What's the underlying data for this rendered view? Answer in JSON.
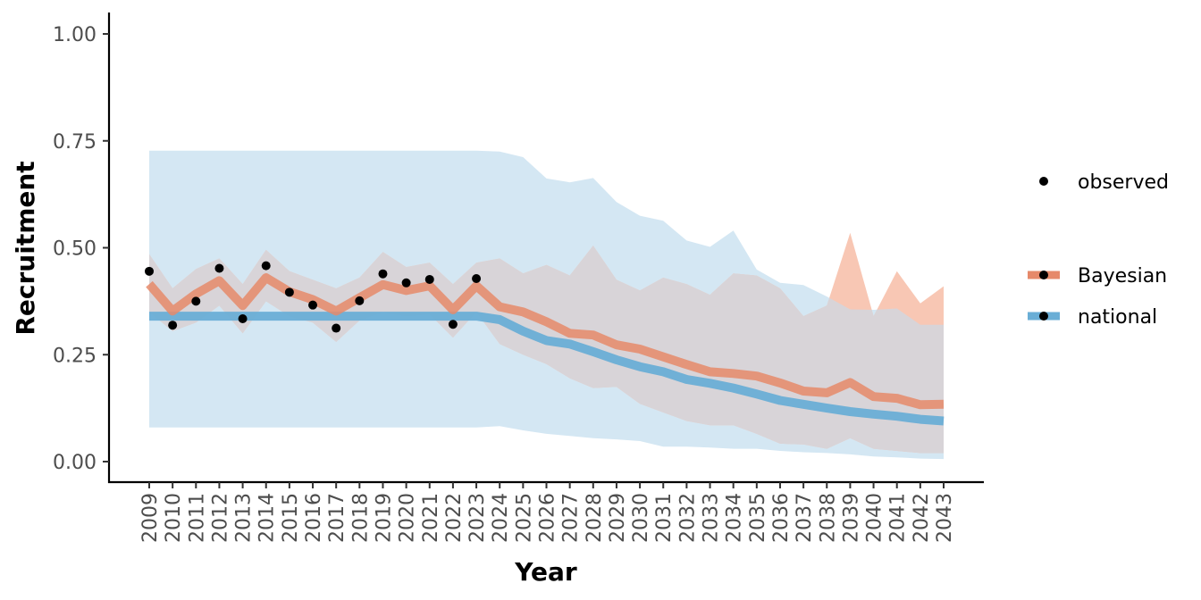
{
  "chart_data": {
    "type": "line",
    "xlabel": "Year",
    "ylabel": "Recruitment",
    "ylim": [
      0,
      1
    ],
    "yticks": [
      0,
      0.25,
      0.5,
      0.75,
      1
    ],
    "ytick_labels": [
      "0.00",
      "0.25",
      "0.50",
      "0.75",
      "1.00"
    ],
    "grid": false,
    "legend_position": "right",
    "x": [
      2009,
      2010,
      2011,
      2012,
      2013,
      2014,
      2015,
      2016,
      2017,
      2018,
      2019,
      2020,
      2021,
      2022,
      2023,
      2024,
      2025,
      2026,
      2027,
      2028,
      2029,
      2030,
      2031,
      2032,
      2033,
      2034,
      2035,
      2036,
      2037,
      2038,
      2039,
      2040,
      2041,
      2042,
      2043
    ],
    "observed": {
      "name": "observed",
      "x": [
        2009,
        2010,
        2011,
        2012,
        2013,
        2014,
        2015,
        2016,
        2017,
        2018,
        2019,
        2020,
        2021,
        2022,
        2023
      ],
      "values": [
        0.445,
        0.319,
        0.375,
        0.452,
        0.334,
        0.458,
        0.396,
        0.366,
        0.312,
        0.376,
        0.439,
        0.418,
        0.426,
        0.321,
        0.428
      ]
    },
    "series": [
      {
        "name": "Bayesian",
        "color": "#e6896a",
        "band_color": "#f8c7b4",
        "values": [
          0.415,
          0.352,
          0.392,
          0.423,
          0.365,
          0.43,
          0.397,
          0.379,
          0.352,
          0.383,
          0.414,
          0.4,
          0.411,
          0.355,
          0.411,
          0.362,
          0.35,
          0.327,
          0.3,
          0.296,
          0.273,
          0.263,
          0.245,
          0.227,
          0.21,
          0.206,
          0.2,
          0.184,
          0.165,
          0.161,
          0.185,
          0.152,
          0.148,
          0.133,
          0.134
        ],
        "lower": [
          0.35,
          0.305,
          0.325,
          0.365,
          0.3,
          0.375,
          0.34,
          0.325,
          0.28,
          0.33,
          0.35,
          0.34,
          0.345,
          0.29,
          0.35,
          0.275,
          0.25,
          0.228,
          0.195,
          0.172,
          0.175,
          0.135,
          0.115,
          0.095,
          0.085,
          0.085,
          0.065,
          0.042,
          0.04,
          0.03,
          0.055,
          0.03,
          0.025,
          0.02,
          0.02
        ],
        "upper": [
          0.485,
          0.405,
          0.45,
          0.475,
          0.415,
          0.495,
          0.445,
          0.425,
          0.405,
          0.43,
          0.49,
          0.455,
          0.465,
          0.415,
          0.465,
          0.475,
          0.44,
          0.46,
          0.435,
          0.505,
          0.425,
          0.4,
          0.43,
          0.415,
          0.39,
          0.44,
          0.435,
          0.405,
          0.34,
          0.365,
          0.535,
          0.34,
          0.445,
          0.37,
          0.41
        ]
      },
      {
        "name": "national",
        "color": "#6aaed6",
        "band_color": "#d4e7f3",
        "values": [
          0.34,
          0.34,
          0.34,
          0.34,
          0.34,
          0.34,
          0.34,
          0.34,
          0.34,
          0.34,
          0.34,
          0.34,
          0.34,
          0.34,
          0.34,
          0.332,
          0.305,
          0.283,
          0.275,
          0.257,
          0.238,
          0.222,
          0.21,
          0.192,
          0.183,
          0.172,
          0.158,
          0.143,
          0.134,
          0.125,
          0.117,
          0.111,
          0.106,
          0.099,
          0.095
        ],
        "lower": [
          0.08,
          0.08,
          0.08,
          0.08,
          0.08,
          0.08,
          0.08,
          0.08,
          0.08,
          0.08,
          0.08,
          0.08,
          0.08,
          0.08,
          0.08,
          0.083,
          0.073,
          0.065,
          0.06,
          0.055,
          0.052,
          0.048,
          0.035,
          0.035,
          0.033,
          0.03,
          0.03,
          0.025,
          0.022,
          0.02,
          0.017,
          0.012,
          0.01,
          0.007,
          0.006
        ],
        "upper": [
          0.727,
          0.727,
          0.727,
          0.727,
          0.727,
          0.727,
          0.727,
          0.727,
          0.727,
          0.727,
          0.727,
          0.727,
          0.727,
          0.727,
          0.727,
          0.725,
          0.712,
          0.662,
          0.653,
          0.663,
          0.607,
          0.575,
          0.563,
          0.517,
          0.502,
          0.54,
          0.449,
          0.418,
          0.413,
          0.386,
          0.356,
          0.355,
          0.358,
          0.32,
          0.32
        ]
      }
    ],
    "overlap_color": "#d8d4d8",
    "legend": [
      {
        "label": "observed",
        "kind": "point"
      },
      {
        "label": "Bayesian",
        "kind": "line-point",
        "color": "#e6896a"
      },
      {
        "label": "national",
        "kind": "line-point",
        "color": "#6aaed6"
      }
    ]
  }
}
